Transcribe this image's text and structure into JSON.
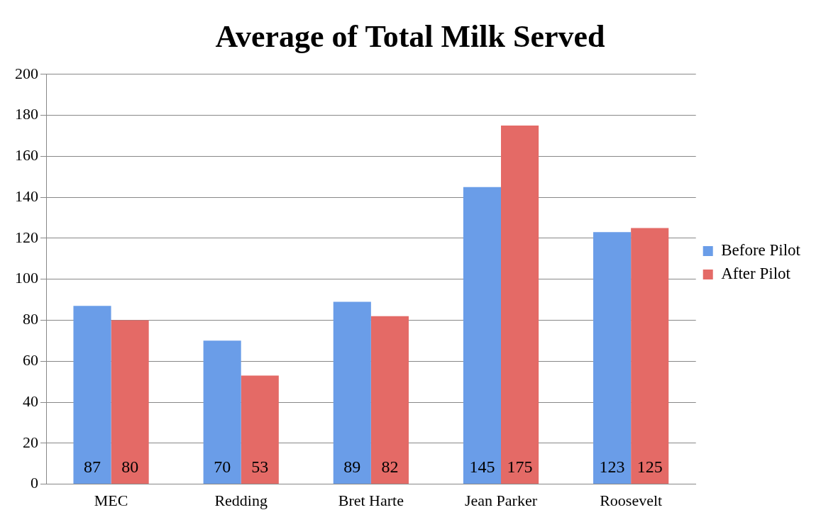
{
  "chart_data": {
    "type": "bar",
    "title": "Average of Total Milk Served",
    "categories": [
      "MEC",
      "Redding",
      "Bret Harte",
      "Jean Parker",
      "Roosevelt"
    ],
    "series": [
      {
        "name": "Before Pilot",
        "color": "#6a9de8",
        "values": [
          87,
          70,
          89,
          145,
          123
        ]
      },
      {
        "name": "After Pilot",
        "color": "#e46a66",
        "values": [
          80,
          53,
          82,
          175,
          125
        ]
      }
    ],
    "ylim": [
      0,
      200
    ],
    "yticks": [
      0,
      20,
      40,
      60,
      80,
      100,
      120,
      140,
      160,
      180,
      200
    ],
    "grid": "y",
    "legend": "right",
    "data_labels": true
  }
}
